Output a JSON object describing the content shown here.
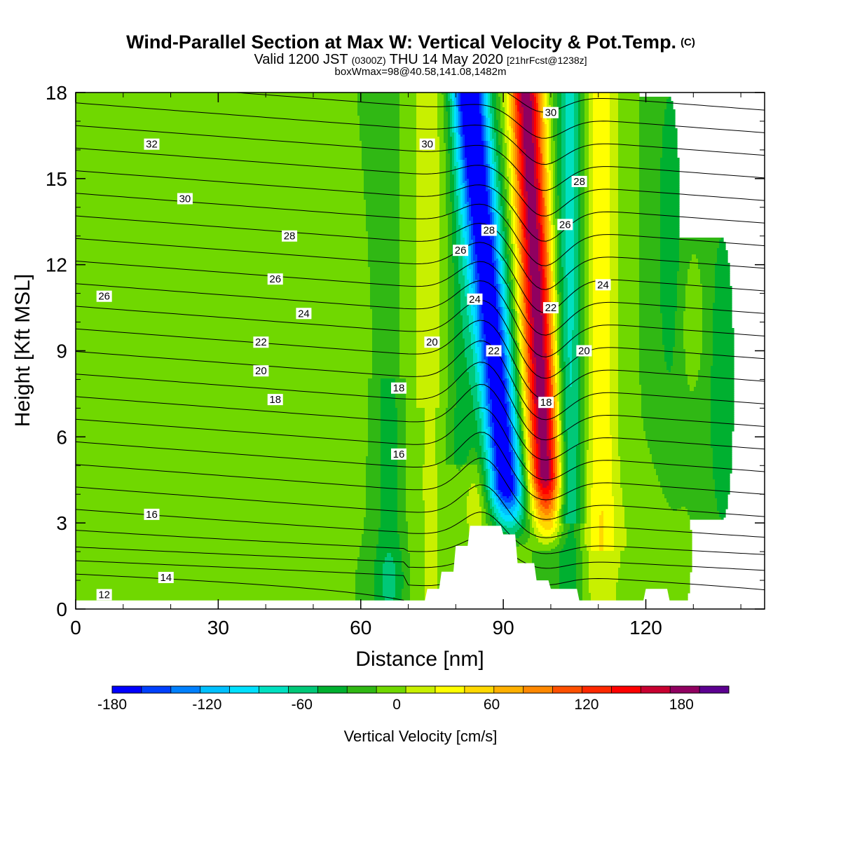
{
  "title": {
    "main": "Wind-Parallel Section at Max W: Vertical Velocity & Pot.Temp.",
    "main_suffix": "(C)",
    "valid_a": "Valid 1200 JST",
    "valid_b": "(0300Z)",
    "valid_c": "THU 14 May 2020",
    "valid_d": "[21hrFcst@1238z]",
    "box": "boxWmax=98@40.58,141.08,1482m"
  },
  "chart_data": {
    "type": "heatmap",
    "xlabel": "Distance [nm]",
    "ylabel": "Height [Kft MSL]",
    "xlim": [
      0,
      145
    ],
    "ylim": [
      0,
      18
    ],
    "x_ticks": [
      "0",
      "30",
      "60",
      "90",
      "120"
    ],
    "y_ticks": [
      "0",
      "3",
      "6",
      "9",
      "12",
      "15",
      "18"
    ],
    "colorbar": {
      "label": "Vertical Velocity [cm/s]",
      "range": [
        -180,
        210
      ],
      "step": 20,
      "tick_labels": [
        "-180",
        "-120",
        "-60",
        "0",
        "60",
        "120",
        "180"
      ],
      "colors": [
        "#0000ff",
        "#0040ff",
        "#0080ff",
        "#00c0ff",
        "#00e0ff",
        "#00e0c0",
        "#00c878",
        "#00b030",
        "#30b814",
        "#70d800",
        "#c8f000",
        "#ffff00",
        "#ffd800",
        "#ffb000",
        "#ff8800",
        "#ff5000",
        "#ff2800",
        "#ff0000",
        "#c80030",
        "#900060",
        "#5c0090"
      ]
    },
    "terrain_height_kft": [
      [
        74,
        0.7
      ],
      [
        77,
        1.3
      ],
      [
        80,
        2.2
      ],
      [
        83,
        2.9
      ],
      [
        86,
        2.9
      ],
      [
        90,
        2.6
      ],
      [
        93,
        1.6
      ],
      [
        97,
        1.0
      ],
      [
        100,
        0.7
      ],
      [
        106,
        0.3
      ],
      [
        120,
        0.7
      ],
      [
        125,
        0.3
      ]
    ],
    "theta_contour_labels": [
      {
        "text": "32",
        "x": 16,
        "y": 16.2
      },
      {
        "text": "30",
        "x": 23,
        "y": 14.3
      },
      {
        "text": "28",
        "x": 45,
        "y": 13.0
      },
      {
        "text": "26",
        "x": 6,
        "y": 10.9
      },
      {
        "text": "26",
        "x": 42,
        "y": 11.5
      },
      {
        "text": "24",
        "x": 48,
        "y": 10.3
      },
      {
        "text": "22",
        "x": 39,
        "y": 9.3
      },
      {
        "text": "20",
        "x": 39,
        "y": 8.3
      },
      {
        "text": "18",
        "x": 42,
        "y": 7.3
      },
      {
        "text": "16",
        "x": 16,
        "y": 3.3
      },
      {
        "text": "14",
        "x": 19,
        "y": 1.1
      },
      {
        "text": "12",
        "x": 6,
        "y": 0.5
      },
      {
        "text": "30",
        "x": 74,
        "y": 16.2
      },
      {
        "text": "26",
        "x": 81,
        "y": 12.5
      },
      {
        "text": "24",
        "x": 84,
        "y": 10.8
      },
      {
        "text": "20",
        "x": 75,
        "y": 9.3
      },
      {
        "text": "18",
        "x": 68,
        "y": 7.7
      },
      {
        "text": "16",
        "x": 68,
        "y": 5.4
      },
      {
        "text": "28",
        "x": 87,
        "y": 13.2
      },
      {
        "text": "22",
        "x": 88,
        "y": 9.0
      },
      {
        "text": "30",
        "x": 100,
        "y": 17.3
      },
      {
        "text": "28",
        "x": 106,
        "y": 14.9
      },
      {
        "text": "26",
        "x": 103,
        "y": 13.4
      },
      {
        "text": "24",
        "x": 111,
        "y": 11.3
      },
      {
        "text": "22",
        "x": 100,
        "y": 10.5
      },
      {
        "text": "20",
        "x": 107,
        "y": 9.0
      },
      {
        "text": "18",
        "x": 99,
        "y": 7.2
      }
    ]
  }
}
